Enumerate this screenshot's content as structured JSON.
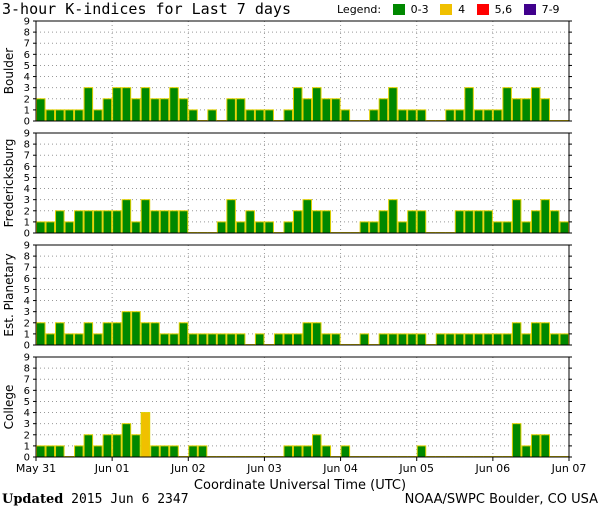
{
  "title": "3-hour K-indices for Last 7 days",
  "legend": {
    "label": "Legend:",
    "items": [
      {
        "label": "0-3",
        "color": "#008800"
      },
      {
        "label": "4",
        "color": "#f0c000"
      },
      {
        "label": "5,6",
        "color": "#ff0000"
      },
      {
        "label": "7-9",
        "color": "#40008c"
      }
    ]
  },
  "footer": {
    "updated_label": "Updated",
    "updated_value": "2015 Jun  6 2347",
    "source": "NOAA/SWPC Boulder, CO USA"
  },
  "chart_data": {
    "type": "bar",
    "title": "3-hour K-indices for Last 7 days",
    "xlabel": "Coordinate Universal Time (UTC)",
    "x_tick_labels": [
      "May 31",
      "Jun 01",
      "Jun 02",
      "Jun 03",
      "Jun 04",
      "Jun 05",
      "Jun 06",
      "Jun 07"
    ],
    "y_tick_labels": [
      "0",
      "1",
      "2",
      "3",
      "4",
      "5",
      "6",
      "7",
      "8",
      "9"
    ],
    "ylim": [
      0,
      9
    ],
    "color_scale": [
      {
        "range": "0-3",
        "color": "#008800"
      },
      {
        "range": "4",
        "color": "#f0c000"
      },
      {
        "range": "5,6",
        "color": "#ff0000"
      },
      {
        "range": "7-9",
        "color": "#40008c"
      }
    ],
    "panels": [
      {
        "name": "Boulder",
        "values": [
          2,
          1,
          1,
          1,
          1,
          3,
          1,
          2,
          3,
          3,
          2,
          3,
          2,
          2,
          3,
          2,
          1,
          0,
          1,
          0,
          2,
          2,
          1,
          1,
          1,
          0,
          1,
          3,
          2,
          3,
          2,
          2,
          1,
          0,
          0,
          1,
          2,
          3,
          1,
          1,
          1,
          0,
          0,
          1,
          1,
          3,
          1,
          1,
          1,
          3,
          2,
          2,
          3,
          2,
          0,
          0
        ]
      },
      {
        "name": "Fredericksburg",
        "values": [
          1,
          1,
          2,
          1,
          2,
          2,
          2,
          2,
          2,
          3,
          1,
          3,
          2,
          2,
          2,
          2,
          0,
          0,
          0,
          1,
          3,
          1,
          2,
          1,
          1,
          0,
          1,
          2,
          3,
          2,
          2,
          0,
          0,
          0,
          1,
          1,
          2,
          3,
          1,
          2,
          2,
          0,
          0,
          0,
          2,
          2,
          2,
          2,
          1,
          1,
          3,
          1,
          2,
          3,
          2,
          1
        ]
      },
      {
        "name": "Est. Planetary",
        "values": [
          2,
          1,
          2,
          1,
          1,
          2,
          1,
          2,
          2,
          3,
          3,
          2,
          2,
          1,
          1,
          2,
          1,
          1,
          1,
          1,
          1,
          1,
          0,
          1,
          0,
          1,
          1,
          1,
          2,
          2,
          1,
          1,
          0,
          0,
          1,
          0,
          1,
          1,
          1,
          1,
          1,
          0,
          1,
          1,
          1,
          1,
          1,
          1,
          1,
          1,
          2,
          1,
          2,
          2,
          1,
          1
        ]
      },
      {
        "name": "College",
        "values": [
          1,
          1,
          1,
          0,
          1,
          2,
          1,
          2,
          2,
          3,
          2,
          4,
          1,
          1,
          1,
          0,
          1,
          1,
          0,
          0,
          0,
          0,
          0,
          0,
          0,
          0,
          1,
          1,
          1,
          2,
          1,
          0,
          1,
          0,
          0,
          0,
          0,
          0,
          0,
          0,
          1,
          0,
          0,
          0,
          0,
          0,
          0,
          0,
          0,
          0,
          3,
          1,
          2,
          2,
          0,
          0
        ]
      }
    ]
  }
}
